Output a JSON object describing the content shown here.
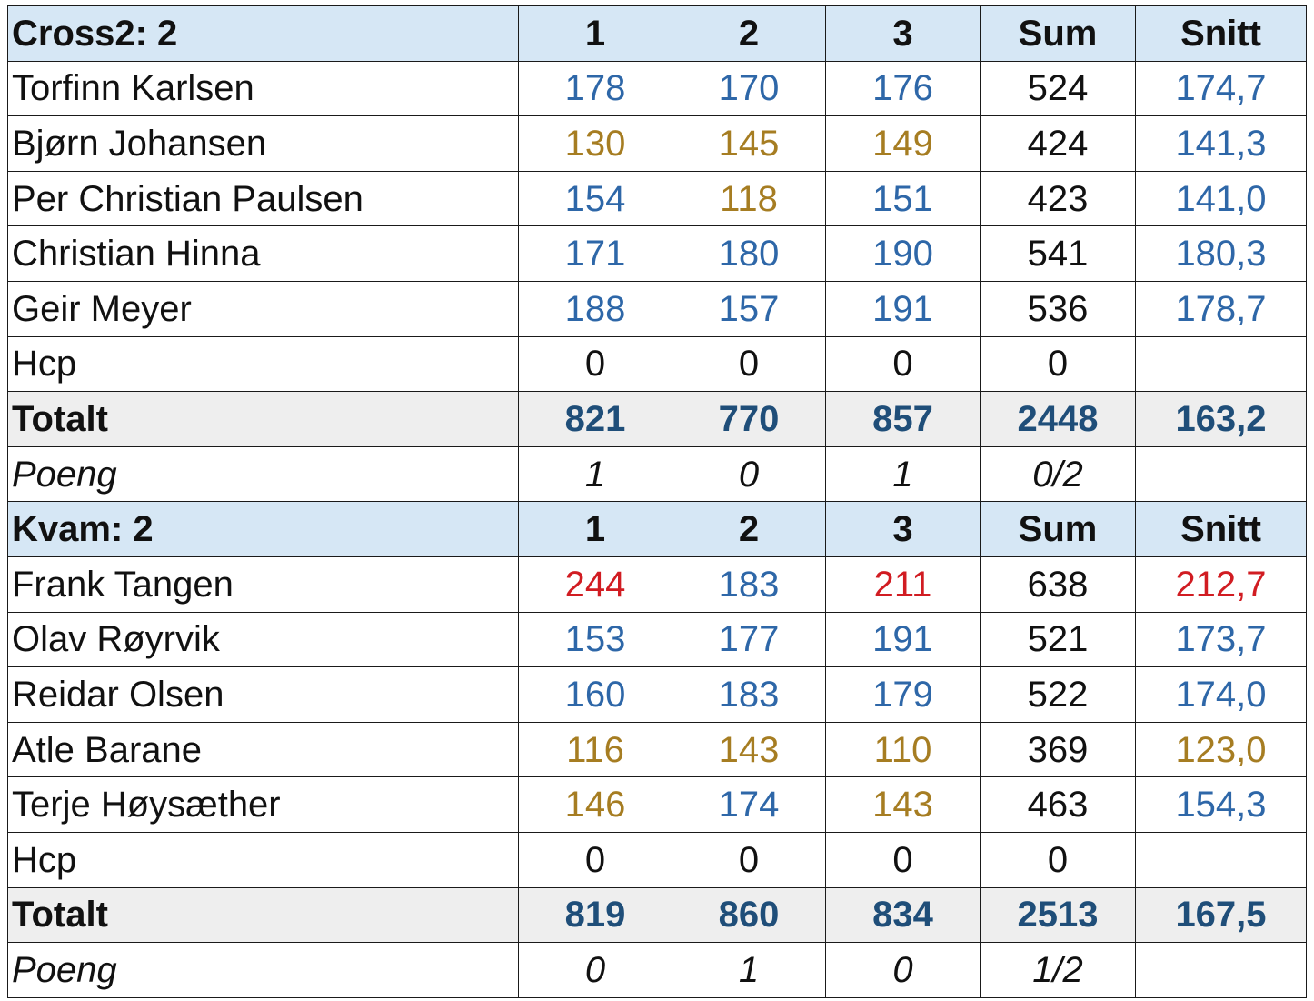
{
  "teams": [
    {
      "header": {
        "name": "Cross2:  2",
        "cols": [
          "1",
          "2",
          "3",
          "Sum",
          "Snitt"
        ]
      },
      "players": [
        {
          "name": "Torfinn Karlsen",
          "g1": "178",
          "g2": "170",
          "g3": "176",
          "sum": "524",
          "avg": "174,7",
          "colors": {
            "g1": "blue",
            "g2": "blue",
            "g3": "blue",
            "avg": "blue"
          }
        },
        {
          "name": "Bjørn Johansen",
          "g1": "130",
          "g2": "145",
          "g3": "149",
          "sum": "424",
          "avg": "141,3",
          "colors": {
            "g1": "gold",
            "g2": "gold",
            "g3": "gold",
            "avg": "blue"
          }
        },
        {
          "name": "Per Christian Paulsen",
          "g1": "154",
          "g2": "118",
          "g3": "151",
          "sum": "423",
          "avg": "141,0",
          "colors": {
            "g1": "blue",
            "g2": "gold",
            "g3": "blue",
            "avg": "blue"
          }
        },
        {
          "name": "Christian Hinna",
          "g1": "171",
          "g2": "180",
          "g3": "190",
          "sum": "541",
          "avg": "180,3",
          "colors": {
            "g1": "blue",
            "g2": "blue",
            "g3": "blue",
            "avg": "blue"
          }
        },
        {
          "name": "Geir Meyer",
          "g1": "188",
          "g2": "157",
          "g3": "191",
          "sum": "536",
          "avg": "178,7",
          "colors": {
            "g1": "blue",
            "g2": "blue",
            "g3": "blue",
            "avg": "blue"
          }
        }
      ],
      "hcp": {
        "label": "Hcp",
        "g1": "0",
        "g2": "0",
        "g3": "0",
        "sum": "0",
        "avg": ""
      },
      "total": {
        "label": "Totalt",
        "g1": "821",
        "g2": "770",
        "g3": "857",
        "sum": "2448",
        "avg": "163,2"
      },
      "poeng": {
        "label": "Poeng",
        "g1": "1",
        "g2": "0",
        "g3": "1",
        "sum": "0/2",
        "avg": ""
      }
    },
    {
      "header": {
        "name": "Kvam:  2",
        "cols": [
          "1",
          "2",
          "3",
          "Sum",
          "Snitt"
        ]
      },
      "players": [
        {
          "name": "Frank Tangen",
          "g1": "244",
          "g2": "183",
          "g3": "211",
          "sum": "638",
          "avg": "212,7",
          "colors": {
            "g1": "red",
            "g2": "blue",
            "g3": "red",
            "avg": "red"
          }
        },
        {
          "name": "Olav Røyrvik",
          "g1": "153",
          "g2": "177",
          "g3": "191",
          "sum": "521",
          "avg": "173,7",
          "colors": {
            "g1": "blue",
            "g2": "blue",
            "g3": "blue",
            "avg": "blue"
          }
        },
        {
          "name": "Reidar Olsen",
          "g1": "160",
          "g2": "183",
          "g3": "179",
          "sum": "522",
          "avg": "174,0",
          "colors": {
            "g1": "blue",
            "g2": "blue",
            "g3": "blue",
            "avg": "blue"
          }
        },
        {
          "name": "Atle Barane",
          "g1": "116",
          "g2": "143",
          "g3": "110",
          "sum": "369",
          "avg": "123,0",
          "colors": {
            "g1": "gold",
            "g2": "gold",
            "g3": "gold",
            "avg": "gold"
          }
        },
        {
          "name": "Terje Høysæther",
          "g1": "146",
          "g2": "174",
          "g3": "143",
          "sum": "463",
          "avg": "154,3",
          "colors": {
            "g1": "gold",
            "g2": "blue",
            "g3": "gold",
            "avg": "blue"
          }
        }
      ],
      "hcp": {
        "label": "Hcp",
        "g1": "0",
        "g2": "0",
        "g3": "0",
        "sum": "0",
        "avg": ""
      },
      "total": {
        "label": "Totalt",
        "g1": "819",
        "g2": "860",
        "g3": "834",
        "sum": "2513",
        "avg": "167,5"
      },
      "poeng": {
        "label": "Poeng",
        "g1": "0",
        "g2": "1",
        "g3": "0",
        "sum": "1/2",
        "avg": ""
      }
    }
  ],
  "palette": {
    "blue": "#2e67a8",
    "gold": "#a67d22",
    "red": "#d11c22",
    "total_text": "#1f4e79",
    "header_bg": "#d6e7f5",
    "total_bg": "#eeeeee"
  }
}
